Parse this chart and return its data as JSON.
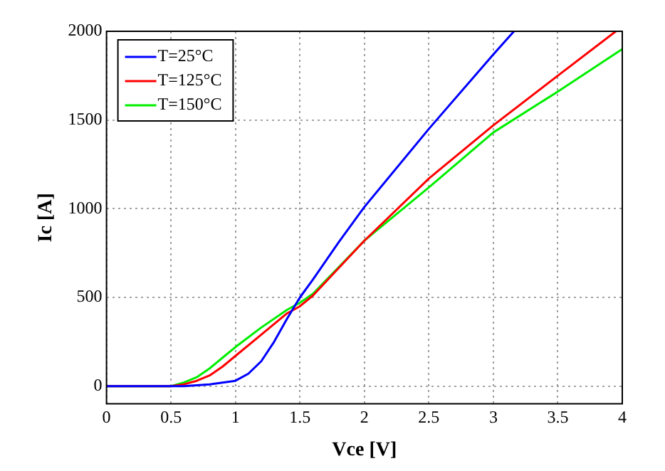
{
  "chart_data": {
    "type": "line",
    "xlabel": "Vce [V]",
    "ylabel": "Ic [A]",
    "xlim": [
      0,
      4
    ],
    "ylim": [
      -100,
      2000
    ],
    "xticks": [
      0,
      0.5,
      1,
      1.5,
      2,
      2.5,
      3,
      3.5,
      4
    ],
    "yticks": [
      0,
      500,
      1000,
      1500,
      2000
    ],
    "grid": true,
    "legend": "top left",
    "marker": "none",
    "line_style": "solid",
    "series": [
      {
        "name": "T=25°C",
        "color": "#0000ff",
        "x": [
          0,
          0.4,
          0.6,
          0.8,
          0.9,
          1.0,
          1.1,
          1.2,
          1.3,
          1.4,
          1.5,
          1.6,
          1.8,
          2.0,
          2.5,
          3.0,
          3.16
        ],
        "values": [
          0,
          0,
          0,
          10,
          20,
          30,
          70,
          140,
          250,
          380,
          500,
          600,
          810,
          1010,
          1450,
          1870,
          2000
        ]
      },
      {
        "name": "T=125°C",
        "color": "#ff0000",
        "x": [
          0,
          0.4,
          0.5,
          0.6,
          0.7,
          0.8,
          0.9,
          1.0,
          1.2,
          1.4,
          1.5,
          1.6,
          2.0,
          2.5,
          3.0,
          3.5,
          3.95
        ],
        "values": [
          0,
          0,
          0,
          10,
          30,
          60,
          110,
          170,
          290,
          410,
          450,
          510,
          820,
          1170,
          1470,
          1750,
          2000
        ]
      },
      {
        "name": "T=150°C",
        "color": "#00ee00",
        "x": [
          0,
          0.4,
          0.5,
          0.6,
          0.7,
          0.8,
          0.9,
          1.0,
          1.2,
          1.4,
          1.5,
          1.6,
          2.0,
          2.5,
          3.0,
          3.5,
          4.0
        ],
        "values": [
          0,
          0,
          0,
          20,
          50,
          100,
          160,
          220,
          330,
          430,
          470,
          520,
          820,
          1120,
          1430,
          1660,
          1900
        ]
      }
    ]
  }
}
